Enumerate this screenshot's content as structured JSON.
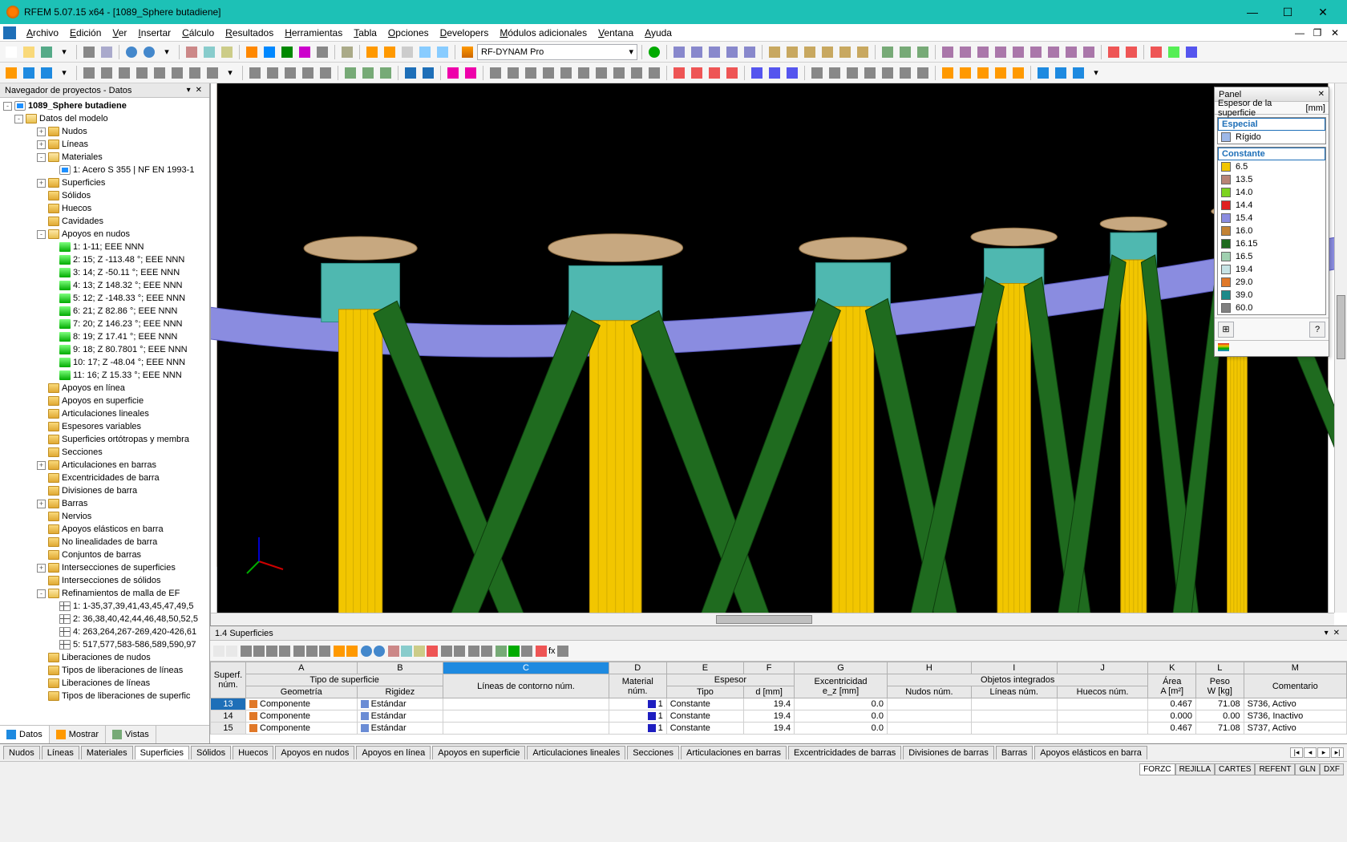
{
  "window": {
    "title": "RFEM 5.07.15 x64 - [1089_Sphere butadiene]"
  },
  "menus": [
    "Archivo",
    "Edición",
    "Ver",
    "Insertar",
    "Cálculo",
    "Resultados",
    "Herramientas",
    "Tabla",
    "Opciones",
    "Developers",
    "Módulos adicionales",
    "Ventana",
    "Ayuda"
  ],
  "toolbar_combo": "RF-DYNAM Pro",
  "navigator": {
    "title": "Navegador de proyectos - Datos",
    "root": "1089_Sphere butadiene",
    "model_data": "Datos del modelo",
    "nodes": [
      {
        "l": "Nudos",
        "i": "f",
        "tw": "+",
        "d": 3
      },
      {
        "l": "Líneas",
        "i": "f",
        "tw": "+",
        "d": 3
      },
      {
        "l": "Materiales",
        "i": "fo",
        "tw": "-",
        "d": 3
      },
      {
        "l": "1: Acero S 355 | NF EN 1993-1",
        "i": "m",
        "tw": "",
        "d": 4
      },
      {
        "l": "Superficies",
        "i": "f",
        "tw": "+",
        "d": 3
      },
      {
        "l": "Sólidos",
        "i": "f",
        "tw": "",
        "d": 3
      },
      {
        "l": "Huecos",
        "i": "f",
        "tw": "",
        "d": 3
      },
      {
        "l": "Cavidades",
        "i": "f",
        "tw": "",
        "d": 3
      },
      {
        "l": "Apoyos en nudos",
        "i": "fo",
        "tw": "-",
        "d": 3
      },
      {
        "l": "1: 1-11; EEE NNN",
        "i": "s",
        "tw": "",
        "d": 4
      },
      {
        "l": "2: 15; Z -113.48 °; EEE NNN",
        "i": "s",
        "tw": "",
        "d": 4
      },
      {
        "l": "3: 14; Z -50.11 °; EEE NNN",
        "i": "s",
        "tw": "",
        "d": 4
      },
      {
        "l": "4: 13; Z 148.32 °; EEE NNN",
        "i": "s",
        "tw": "",
        "d": 4
      },
      {
        "l": "5: 12; Z -148.33 °; EEE NNN",
        "i": "s",
        "tw": "",
        "d": 4
      },
      {
        "l": "6: 21; Z 82.86 °; EEE NNN",
        "i": "s",
        "tw": "",
        "d": 4
      },
      {
        "l": "7: 20; Z 146.23 °; EEE NNN",
        "i": "s",
        "tw": "",
        "d": 4
      },
      {
        "l": "8: 19; Z 17.41 °; EEE NNN",
        "i": "s",
        "tw": "",
        "d": 4
      },
      {
        "l": "9: 18; Z 80.7801 °; EEE NNN",
        "i": "s",
        "tw": "",
        "d": 4
      },
      {
        "l": "10: 17; Z -48.04 °; EEE NNN",
        "i": "s",
        "tw": "",
        "d": 4
      },
      {
        "l": "11: 16; Z 15.33 °; EEE NNN",
        "i": "s",
        "tw": "",
        "d": 4
      },
      {
        "l": "Apoyos en línea",
        "i": "f",
        "tw": "",
        "d": 3
      },
      {
        "l": "Apoyos en superficie",
        "i": "f",
        "tw": "",
        "d": 3
      },
      {
        "l": "Articulaciones lineales",
        "i": "f",
        "tw": "",
        "d": 3
      },
      {
        "l": "Espesores variables",
        "i": "f",
        "tw": "",
        "d": 3
      },
      {
        "l": "Superficies ortótropas y membra",
        "i": "f",
        "tw": "",
        "d": 3
      },
      {
        "l": "Secciones",
        "i": "f",
        "tw": "",
        "d": 3
      },
      {
        "l": "Articulaciones en barras",
        "i": "f",
        "tw": "+",
        "d": 3
      },
      {
        "l": "Excentricidades de barra",
        "i": "f",
        "tw": "",
        "d": 3
      },
      {
        "l": "Divisiones de barra",
        "i": "f",
        "tw": "",
        "d": 3
      },
      {
        "l": "Barras",
        "i": "f",
        "tw": "+",
        "d": 3
      },
      {
        "l": "Nervios",
        "i": "f",
        "tw": "",
        "d": 3
      },
      {
        "l": "Apoyos elásticos en barra",
        "i": "f",
        "tw": "",
        "d": 3
      },
      {
        "l": "No linealidades de barra",
        "i": "f",
        "tw": "",
        "d": 3
      },
      {
        "l": "Conjuntos de barras",
        "i": "f",
        "tw": "",
        "d": 3
      },
      {
        "l": "Intersecciones de superficies",
        "i": "f",
        "tw": "+",
        "d": 3
      },
      {
        "l": "Intersecciones de sólidos",
        "i": "f",
        "tw": "",
        "d": 3
      },
      {
        "l": "Refinamientos de malla de EF",
        "i": "fo",
        "tw": "-",
        "d": 3
      },
      {
        "l": "1: 1-35,37,39,41,43,45,47,49,5",
        "i": "me",
        "tw": "",
        "d": 4
      },
      {
        "l": "2: 36,38,40,42,44,46,48,50,52,5",
        "i": "me",
        "tw": "",
        "d": 4
      },
      {
        "l": "4: 263,264,267-269,420-426,61",
        "i": "me",
        "tw": "",
        "d": 4
      },
      {
        "l": "5: 517,577,583-586,589,590,97",
        "i": "me",
        "tw": "",
        "d": 4
      },
      {
        "l": "Liberaciones de nudos",
        "i": "f",
        "tw": "",
        "d": 3
      },
      {
        "l": "Tipos de liberaciones de líneas",
        "i": "f",
        "tw": "",
        "d": 3
      },
      {
        "l": "Liberaciones de líneas",
        "i": "f",
        "tw": "",
        "d": 3
      },
      {
        "l": "Tipos de liberaciones de superfic",
        "i": "f",
        "tw": "",
        "d": 3
      }
    ],
    "tabs": [
      "Datos",
      "Mostrar",
      "Vistas"
    ]
  },
  "panel": {
    "title": "Panel",
    "subtitle": "Espesor de la superficie",
    "unit": "[mm]",
    "sections": {
      "special": {
        "label": "Especial",
        "items": [
          {
            "c": "#9db8e8",
            "l": "Rígido"
          }
        ]
      },
      "constant": {
        "label": "Constante",
        "items": [
          {
            "c": "#f2c600",
            "l": "6.5"
          },
          {
            "c": "#b88476",
            "l": "13.5"
          },
          {
            "c": "#7dd321",
            "l": "14.0"
          },
          {
            "c": "#e02020",
            "l": "14.4"
          },
          {
            "c": "#8a8ce0",
            "l": "15.4"
          },
          {
            "c": "#c38335",
            "l": "16.0"
          },
          {
            "c": "#1f6b1f",
            "l": "16.15"
          },
          {
            "c": "#a0d0b0",
            "l": "16.5"
          },
          {
            "c": "#c6e3e5",
            "l": "19.4"
          },
          {
            "c": "#e07828",
            "l": "29.0"
          },
          {
            "c": "#1e8a8a",
            "l": "39.0"
          },
          {
            "c": "#808080",
            "l": "60.0"
          }
        ]
      }
    }
  },
  "lower": {
    "title": "1.4 Superficies",
    "col_letters": [
      "A",
      "B",
      "C",
      "D",
      "E",
      "F",
      "G",
      "H",
      "I",
      "J",
      "K",
      "L",
      "M"
    ],
    "groups": {
      "rownum": "Superf.\nnúm.",
      "type": "Tipo de superficie",
      "geo": "Geometría",
      "rig": "Rigidez",
      "contour": "Líneas de contorno núm.",
      "mat": "Material\nnúm.",
      "thick": "Espesor",
      "thick_type": "Tipo",
      "thick_d": "d [mm]",
      "ecc": "Excentricidad\ne_z [mm]",
      "intobj": "Objetos integrados",
      "nudos": "Nudos núm.",
      "lineas": "Líneas núm.",
      "huecos": "Huecos núm.",
      "area": "Área\nA [m²]",
      "peso": "Peso\nW [kg]",
      "com": "Comentario"
    },
    "rows": [
      {
        "n": "13",
        "sel": true,
        "geo": "Componente",
        "geoc": "#e07828",
        "rig": "Estándar",
        "rigc": "#6a8cd5",
        "mat": "1",
        "matc": "#1e1ec0",
        "tipo": "Constante",
        "d": "19.4",
        "ez": "0.0",
        "area": "0.467",
        "peso": "71.08",
        "com": "S736, Activo"
      },
      {
        "n": "14",
        "sel": false,
        "geo": "Componente",
        "geoc": "#e07828",
        "rig": "Estándar",
        "rigc": "#6a8cd5",
        "mat": "1",
        "matc": "#1e1ec0",
        "tipo": "Constante",
        "d": "19.4",
        "ez": "0.0",
        "area": "0.000",
        "peso": "0.00",
        "com": "S736, Inactivo"
      },
      {
        "n": "15",
        "sel": false,
        "geo": "Componente",
        "geoc": "#e07828",
        "rig": "Estándar",
        "rigc": "#6a8cd5",
        "mat": "1",
        "matc": "#1e1ec0",
        "tipo": "Constante",
        "d": "19.4",
        "ez": "0.0",
        "area": "0.467",
        "peso": "71.08",
        "com": "S737, Activo"
      }
    ]
  },
  "bottom_tabs": [
    "Nudos",
    "Líneas",
    "Materiales",
    "Superficies",
    "Sólidos",
    "Huecos",
    "Apoyos en nudos",
    "Apoyos en línea",
    "Apoyos en superficie",
    "Articulaciones lineales",
    "Secciones",
    "Articulaciones en barras",
    "Excentricidades de barras",
    "Divisiones de barras",
    "Barras",
    "Apoyos elásticos en barra"
  ],
  "bottom_tab_active": 3,
  "status": [
    "FORZC",
    "REJILLA",
    "CARTES",
    "REFENT",
    "GLN",
    "DXF"
  ],
  "viewport": {
    "sphere_color": "#c98b3a",
    "mesh_color": "rgba(255,255,255,0.18)",
    "column_color": "#f2c600",
    "brace_color": "#1f6b1f",
    "ring_color": "#8a8ce0",
    "knuckle_color": "#4fb8b0",
    "cap_color": "#c7a880"
  }
}
